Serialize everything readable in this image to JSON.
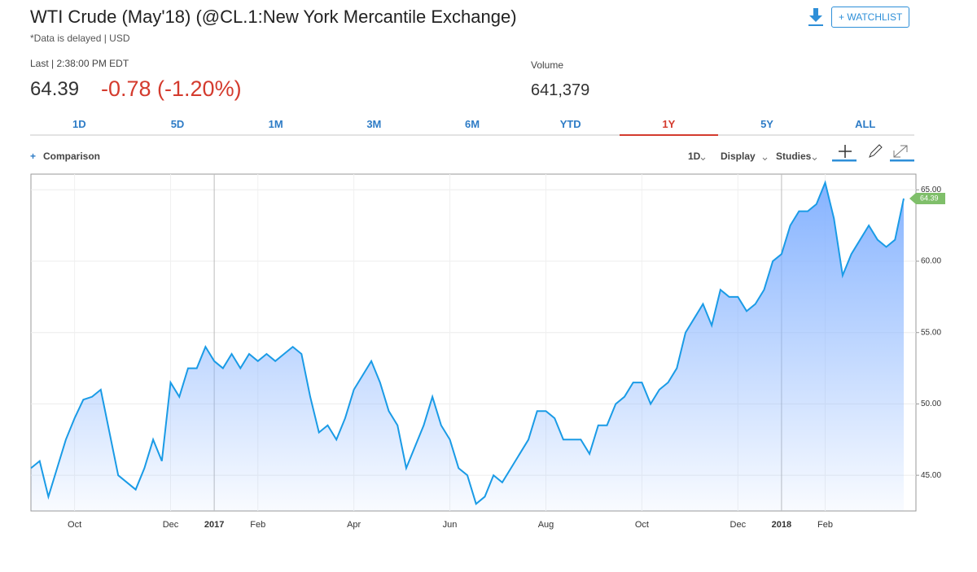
{
  "header": {
    "title": "WTI Crude (May'18) (@CL.1:New York Mercantile Exchange)",
    "subtitle": "*Data is delayed | USD",
    "watchlist": "+ WATCHLIST"
  },
  "quote": {
    "last_label": "Last | 2:38:00 PM EDT",
    "last": "64.39",
    "change": "-0.78 (-1.20%)",
    "volume_label": "Volume",
    "volume": "641,379"
  },
  "tabs": {
    "items": [
      "1D",
      "5D",
      "1M",
      "3M",
      "6M",
      "YTD",
      "1Y",
      "5Y",
      "ALL"
    ],
    "active": 6
  },
  "toolbar": {
    "comparison": "Comparison",
    "interval": "1D",
    "display": "Display",
    "studies": "Studies"
  },
  "chart_data": {
    "type": "area",
    "categories": [
      null,
      null,
      null,
      null,
      null,
      "Oct",
      null,
      null,
      null,
      null,
      null,
      null,
      null,
      null,
      null,
      null,
      "Dec",
      null,
      null,
      null,
      null,
      "2017",
      null,
      null,
      null,
      null,
      "Feb",
      null,
      null,
      null,
      null,
      null,
      null,
      null,
      null,
      null,
      null,
      "Apr",
      null,
      null,
      null,
      null,
      null,
      null,
      null,
      null,
      null,
      null,
      "Jun",
      null,
      null,
      null,
      null,
      null,
      null,
      null,
      null,
      null,
      null,
      "Aug",
      null,
      null,
      null,
      null,
      null,
      null,
      null,
      null,
      null,
      null,
      "Oct",
      null,
      null,
      null,
      null,
      null,
      null,
      null,
      null,
      null,
      null,
      "Dec",
      null,
      null,
      null,
      null,
      "2018",
      null,
      null,
      null,
      null,
      "Feb",
      null,
      null,
      null,
      null,
      null,
      null,
      null,
      null,
      null
    ],
    "series": [
      {
        "name": "WTI Crude",
        "color": "#1a9be6",
        "values": [
          45.5,
          46,
          43.5,
          45.5,
          47.5,
          49,
          50.3,
          50.5,
          51,
          48,
          45,
          44.5,
          44,
          45.5,
          47.5,
          46,
          51.5,
          50.5,
          52.5,
          52.5,
          54,
          53,
          52.5,
          53.5,
          52.5,
          53.5,
          53,
          53.5,
          53,
          53.5,
          54,
          53.5,
          50.5,
          48,
          48.5,
          47.5,
          49,
          51,
          52,
          53,
          51.5,
          49.5,
          48.5,
          45.5,
          47,
          48.5,
          50.5,
          48.5,
          47.5,
          45.5,
          45,
          43,
          43.5,
          45,
          44.5,
          45.5,
          46.5,
          47.5,
          49.5,
          49.5,
          49,
          47.5,
          47.5,
          47.5,
          46.5,
          48.5,
          48.5,
          50,
          50.5,
          51.5,
          51.5,
          50,
          51,
          51.5,
          52.5,
          55,
          56,
          57,
          55.5,
          58,
          57.5,
          57.5,
          56.5,
          57,
          58,
          60,
          60.5,
          62.5,
          63.5,
          63.5,
          64,
          65.5,
          63,
          59,
          60.5,
          61.5,
          62.5,
          61.5,
          61,
          61.5,
          64.39
        ]
      }
    ],
    "ylim": [
      42.5,
      66.1
    ],
    "yticks": [
      {
        "value": 45,
        "label": "45.00"
      },
      {
        "value": 50,
        "label": "50.00"
      },
      {
        "value": 55,
        "label": "55.00"
      },
      {
        "value": 60,
        "label": "60.00"
      },
      {
        "value": 65,
        "label": "65.00"
      }
    ],
    "grid": true
  }
}
